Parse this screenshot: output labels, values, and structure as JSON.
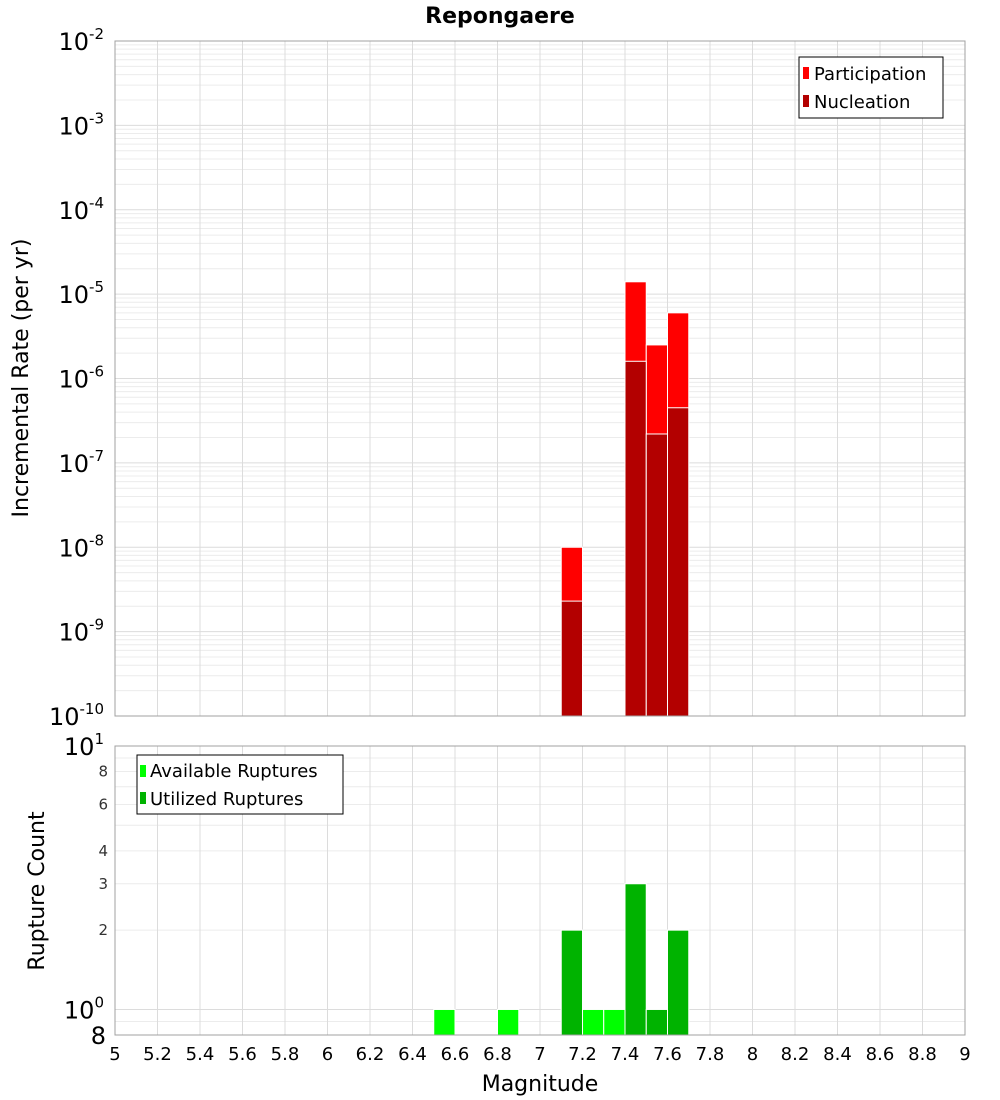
{
  "chart_data": [
    {
      "type": "bar",
      "title": "Repongaere",
      "xlabel": "",
      "ylabel": "Incremental Rate (per yr)",
      "yscale": "log",
      "ylim": [
        1e-10,
        0.01
      ],
      "xlim": [
        5,
        9
      ],
      "y_tick_labels": [
        {
          "base": "10",
          "exp": "-10"
        },
        {
          "base": "10",
          "exp": "-9"
        },
        {
          "base": "10",
          "exp": "-8"
        },
        {
          "base": "10",
          "exp": "-7"
        },
        {
          "base": "10",
          "exp": "-6"
        },
        {
          "base": "10",
          "exp": "-5"
        },
        {
          "base": "10",
          "exp": "-4"
        },
        {
          "base": "10",
          "exp": "-3"
        },
        {
          "base": "10",
          "exp": "-2"
        }
      ],
      "legend": {
        "placement": "top-right",
        "entries": [
          "Participation",
          "Nucleation"
        ]
      },
      "grid": true,
      "series": [
        {
          "name": "Participation",
          "color": "#ff0000",
          "x": [
            7.15,
            7.45,
            7.55,
            7.65
          ],
          "values": [
            1e-08,
            1.4e-05,
            2.5e-06,
            6e-06
          ]
        },
        {
          "name": "Nucleation",
          "color": "#b30000",
          "x": [
            7.15,
            7.45,
            7.55,
            7.65
          ],
          "values": [
            2.3e-09,
            1.6e-06,
            2.2e-07,
            4.5e-07
          ]
        }
      ]
    },
    {
      "type": "bar",
      "title": "",
      "xlabel": "Magnitude",
      "ylabel": "Rupture Count",
      "yscale": "log",
      "ylim": [
        0.8,
        10
      ],
      "xlim": [
        5,
        9
      ],
      "x_ticks": [
        "5",
        "5.2",
        "5.4",
        "5.6",
        "5.8",
        "6",
        "6.2",
        "6.4",
        "6.6",
        "6.8",
        "7",
        "7.2",
        "7.4",
        "7.6",
        "7.8",
        "8",
        "8.2",
        "8.4",
        "8.6",
        "8.8",
        "9"
      ],
      "y_tick_labels_major": [
        {
          "base": "10",
          "exp": "0"
        },
        {
          "base": "10",
          "exp": "1"
        }
      ],
      "y_tick_labels_minor": [
        "2",
        "3",
        "4",
        "6",
        "8"
      ],
      "y_bottom_label": "8",
      "legend": {
        "placement": "top-left",
        "entries": [
          "Available Ruptures",
          "Utilized Ruptures"
        ]
      },
      "grid": true,
      "series": [
        {
          "name": "Available Ruptures",
          "color": "#00ff00",
          "x": [
            6.55,
            6.85,
            7.15,
            7.25,
            7.35,
            7.45,
            7.55,
            7.65
          ],
          "values": [
            1,
            1,
            2,
            1,
            1,
            3,
            1,
            2
          ]
        },
        {
          "name": "Utilized Ruptures",
          "color": "#00b300",
          "x": [
            7.15,
            7.45,
            7.55,
            7.65
          ],
          "values": [
            2,
            3,
            1,
            2
          ]
        }
      ]
    }
  ]
}
